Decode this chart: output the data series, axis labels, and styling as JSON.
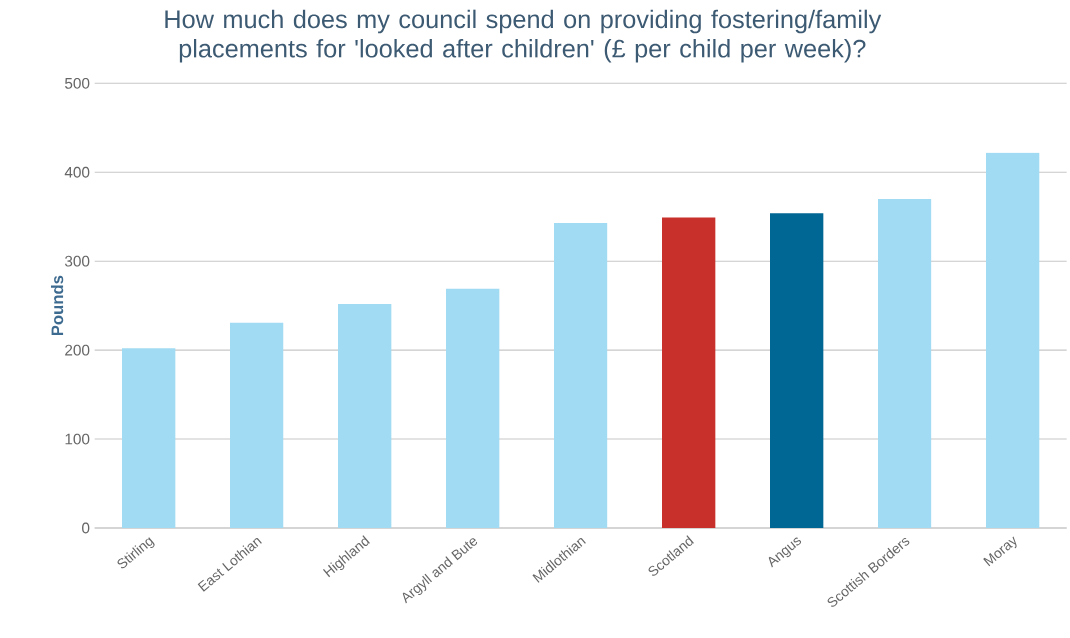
{
  "chart_data": {
    "type": "bar",
    "title": "How much does my council spend on providing fostering/family placements for 'looked after children' (£ per child per week)?",
    "ylabel": "Pounds",
    "categories": [
      "Stirling",
      "East Lothian",
      "Highland",
      "Argyll and Bute",
      "Midlothian",
      "Scotland",
      "Angus",
      "Scottish Borders",
      "Moray"
    ],
    "values": [
      202,
      231,
      252,
      269,
      343,
      349,
      354,
      370,
      422
    ],
    "colors": [
      "#a0dbf3",
      "#a0dbf3",
      "#a0dbf3",
      "#a0dbf3",
      "#a0dbf3",
      "#c8302c",
      "#006693",
      "#a0dbf3",
      "#a0dbf3"
    ],
    "ylim": [
      0,
      500
    ],
    "yticks": [
      0,
      100,
      200,
      300,
      400,
      500
    ],
    "grid": "y"
  }
}
